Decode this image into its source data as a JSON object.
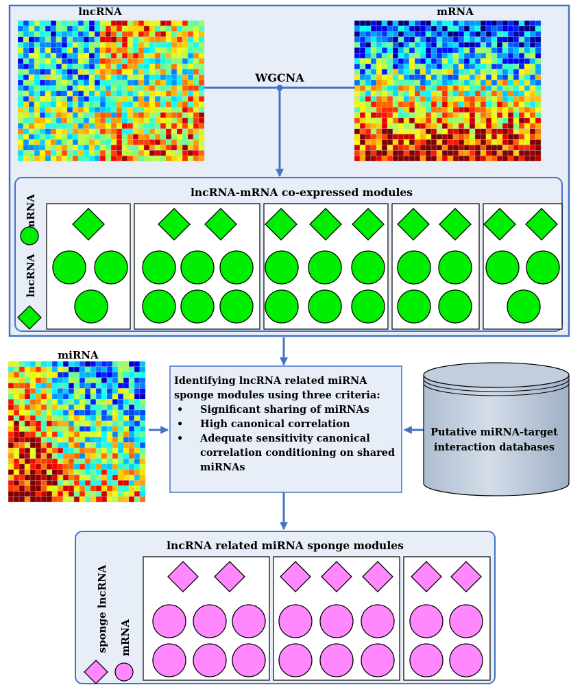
{
  "labels": {
    "lncrna_heatmap": "lncRNA",
    "mrna_heatmap": "mRNA",
    "mirna_heatmap": "miRNA",
    "wgcna": "WGCNA",
    "coexpressed_title": "lncRNA-mRNA co-expressed modules",
    "coexp_legend_mrna": "mRNA",
    "coexp_legend_lncrna": "lncRNA",
    "sponge_title": "lncRNA related miRNA sponge modules",
    "sponge_legend_lncrna": "sponge lncRNA",
    "sponge_legend_mrna": "mRNA",
    "database_line1": "Putative miRNA-target",
    "database_line2": "interaction databases"
  },
  "criteria": {
    "title_line1": "Identifying lncRNA related miRNA",
    "title_line2": "sponge modules using three criteria:",
    "items": [
      "Significant sharing of miRNAs",
      "High canonical correlation",
      "Adequate sensitivity canonical correlation conditioning on shared miRNAs"
    ]
  },
  "colors": {
    "panel_fill": "#e8eef8",
    "panel_border": "#4472c4",
    "arrow": "#4472c4",
    "coexp_node": "#00ee00",
    "sponge_node": "#ff88ff",
    "database_fill": "#c3cedd"
  }
}
